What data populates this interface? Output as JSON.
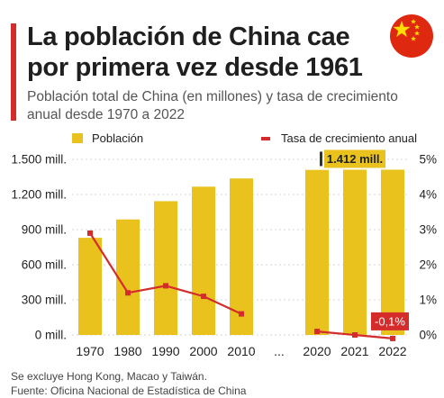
{
  "header": {
    "title": "La población de China cae por primera vez desde 1961",
    "subtitle": "Población total de China (en millones) y tasa de crecimiento anual desde 1970 a 2022",
    "flag_icon": "china-flag-icon"
  },
  "legend": {
    "bar_label": "Población",
    "line_label": "Tasa de crecimiento anual"
  },
  "colors": {
    "bar": "#e9c21e",
    "line": "#d42b2b",
    "accent": "#d42b2b",
    "flag_red": "#de2910",
    "flag_star": "#ffde00"
  },
  "chart_data": {
    "type": "bar",
    "categories": [
      "1970",
      "1980",
      "1990",
      "2000",
      "2010",
      "...",
      "2020",
      "2021",
      "2022"
    ],
    "series": [
      {
        "name": "Población",
        "type": "bar",
        "axis": "left",
        "values": [
          830,
          987,
          1143,
          1267,
          1337,
          null,
          1410,
          1412,
          1412
        ]
      },
      {
        "name": "Tasa de crecimiento anual",
        "type": "line",
        "axis": "right",
        "values": [
          2.9,
          1.2,
          1.4,
          1.1,
          0.6,
          null,
          0.1,
          0.0,
          -0.1
        ]
      }
    ],
    "y_left": {
      "ticks": [
        0,
        300,
        600,
        900,
        1200,
        1500
      ],
      "tick_labels": [
        "0 mill.",
        "300 mill.",
        "600 mill.",
        "900 mill.",
        "1.200 mill.",
        "1.500 mill."
      ],
      "ylim": [
        0,
        1500
      ]
    },
    "y_right": {
      "ticks": [
        0,
        1,
        2,
        3,
        4,
        5
      ],
      "tick_labels": [
        "0%",
        "1%",
        "2%",
        "3%",
        "4%",
        "5%"
      ],
      "ylim": [
        0,
        5
      ]
    },
    "annotations": [
      {
        "category": "2021",
        "series": "Población",
        "text": "1.412 mill."
      },
      {
        "category": "2022",
        "series": "Tasa de crecimiento anual",
        "text": "-0,1%"
      }
    ]
  },
  "notes": {
    "exclusion": "Se excluye Hong Kong, Macao y Taiwán.",
    "source": "Fuente: Oficina Nacional de Estadística de China"
  }
}
